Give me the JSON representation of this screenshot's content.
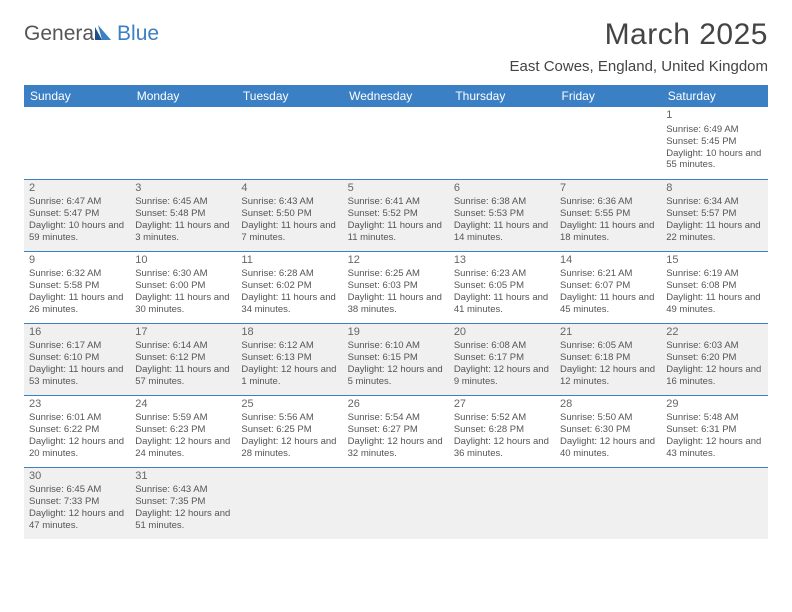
{
  "brand": {
    "part1": "Genera",
    "part2": "Blue"
  },
  "title": "March 2025",
  "location": "East Cowes, England, United Kingdom",
  "colors": {
    "header_bg": "#3b7fc4",
    "shade_bg": "#f0f0f0",
    "text": "#555555"
  },
  "day_headers": [
    "Sunday",
    "Monday",
    "Tuesday",
    "Wednesday",
    "Thursday",
    "Friday",
    "Saturday"
  ],
  "weeks": [
    [
      null,
      null,
      null,
      null,
      null,
      null,
      {
        "n": "1",
        "sr": "Sunrise: 6:49 AM",
        "ss": "Sunset: 5:45 PM",
        "dl": "Daylight: 10 hours and 55 minutes."
      }
    ],
    [
      {
        "n": "2",
        "sr": "Sunrise: 6:47 AM",
        "ss": "Sunset: 5:47 PM",
        "dl": "Daylight: 10 hours and 59 minutes."
      },
      {
        "n": "3",
        "sr": "Sunrise: 6:45 AM",
        "ss": "Sunset: 5:48 PM",
        "dl": "Daylight: 11 hours and 3 minutes."
      },
      {
        "n": "4",
        "sr": "Sunrise: 6:43 AM",
        "ss": "Sunset: 5:50 PM",
        "dl": "Daylight: 11 hours and 7 minutes."
      },
      {
        "n": "5",
        "sr": "Sunrise: 6:41 AM",
        "ss": "Sunset: 5:52 PM",
        "dl": "Daylight: 11 hours and 11 minutes."
      },
      {
        "n": "6",
        "sr": "Sunrise: 6:38 AM",
        "ss": "Sunset: 5:53 PM",
        "dl": "Daylight: 11 hours and 14 minutes."
      },
      {
        "n": "7",
        "sr": "Sunrise: 6:36 AM",
        "ss": "Sunset: 5:55 PM",
        "dl": "Daylight: 11 hours and 18 minutes."
      },
      {
        "n": "8",
        "sr": "Sunrise: 6:34 AM",
        "ss": "Sunset: 5:57 PM",
        "dl": "Daylight: 11 hours and 22 minutes."
      }
    ],
    [
      {
        "n": "9",
        "sr": "Sunrise: 6:32 AM",
        "ss": "Sunset: 5:58 PM",
        "dl": "Daylight: 11 hours and 26 minutes."
      },
      {
        "n": "10",
        "sr": "Sunrise: 6:30 AM",
        "ss": "Sunset: 6:00 PM",
        "dl": "Daylight: 11 hours and 30 minutes."
      },
      {
        "n": "11",
        "sr": "Sunrise: 6:28 AM",
        "ss": "Sunset: 6:02 PM",
        "dl": "Daylight: 11 hours and 34 minutes."
      },
      {
        "n": "12",
        "sr": "Sunrise: 6:25 AM",
        "ss": "Sunset: 6:03 PM",
        "dl": "Daylight: 11 hours and 38 minutes."
      },
      {
        "n": "13",
        "sr": "Sunrise: 6:23 AM",
        "ss": "Sunset: 6:05 PM",
        "dl": "Daylight: 11 hours and 41 minutes."
      },
      {
        "n": "14",
        "sr": "Sunrise: 6:21 AM",
        "ss": "Sunset: 6:07 PM",
        "dl": "Daylight: 11 hours and 45 minutes."
      },
      {
        "n": "15",
        "sr": "Sunrise: 6:19 AM",
        "ss": "Sunset: 6:08 PM",
        "dl": "Daylight: 11 hours and 49 minutes."
      }
    ],
    [
      {
        "n": "16",
        "sr": "Sunrise: 6:17 AM",
        "ss": "Sunset: 6:10 PM",
        "dl": "Daylight: 11 hours and 53 minutes."
      },
      {
        "n": "17",
        "sr": "Sunrise: 6:14 AM",
        "ss": "Sunset: 6:12 PM",
        "dl": "Daylight: 11 hours and 57 minutes."
      },
      {
        "n": "18",
        "sr": "Sunrise: 6:12 AM",
        "ss": "Sunset: 6:13 PM",
        "dl": "Daylight: 12 hours and 1 minute."
      },
      {
        "n": "19",
        "sr": "Sunrise: 6:10 AM",
        "ss": "Sunset: 6:15 PM",
        "dl": "Daylight: 12 hours and 5 minutes."
      },
      {
        "n": "20",
        "sr": "Sunrise: 6:08 AM",
        "ss": "Sunset: 6:17 PM",
        "dl": "Daylight: 12 hours and 9 minutes."
      },
      {
        "n": "21",
        "sr": "Sunrise: 6:05 AM",
        "ss": "Sunset: 6:18 PM",
        "dl": "Daylight: 12 hours and 12 minutes."
      },
      {
        "n": "22",
        "sr": "Sunrise: 6:03 AM",
        "ss": "Sunset: 6:20 PM",
        "dl": "Daylight: 12 hours and 16 minutes."
      }
    ],
    [
      {
        "n": "23",
        "sr": "Sunrise: 6:01 AM",
        "ss": "Sunset: 6:22 PM",
        "dl": "Daylight: 12 hours and 20 minutes."
      },
      {
        "n": "24",
        "sr": "Sunrise: 5:59 AM",
        "ss": "Sunset: 6:23 PM",
        "dl": "Daylight: 12 hours and 24 minutes."
      },
      {
        "n": "25",
        "sr": "Sunrise: 5:56 AM",
        "ss": "Sunset: 6:25 PM",
        "dl": "Daylight: 12 hours and 28 minutes."
      },
      {
        "n": "26",
        "sr": "Sunrise: 5:54 AM",
        "ss": "Sunset: 6:27 PM",
        "dl": "Daylight: 12 hours and 32 minutes."
      },
      {
        "n": "27",
        "sr": "Sunrise: 5:52 AM",
        "ss": "Sunset: 6:28 PM",
        "dl": "Daylight: 12 hours and 36 minutes."
      },
      {
        "n": "28",
        "sr": "Sunrise: 5:50 AM",
        "ss": "Sunset: 6:30 PM",
        "dl": "Daylight: 12 hours and 40 minutes."
      },
      {
        "n": "29",
        "sr": "Sunrise: 5:48 AM",
        "ss": "Sunset: 6:31 PM",
        "dl": "Daylight: 12 hours and 43 minutes."
      }
    ],
    [
      {
        "n": "30",
        "sr": "Sunrise: 6:45 AM",
        "ss": "Sunset: 7:33 PM",
        "dl": "Daylight: 12 hours and 47 minutes."
      },
      {
        "n": "31",
        "sr": "Sunrise: 6:43 AM",
        "ss": "Sunset: 7:35 PM",
        "dl": "Daylight: 12 hours and 51 minutes."
      },
      null,
      null,
      null,
      null,
      null
    ]
  ]
}
